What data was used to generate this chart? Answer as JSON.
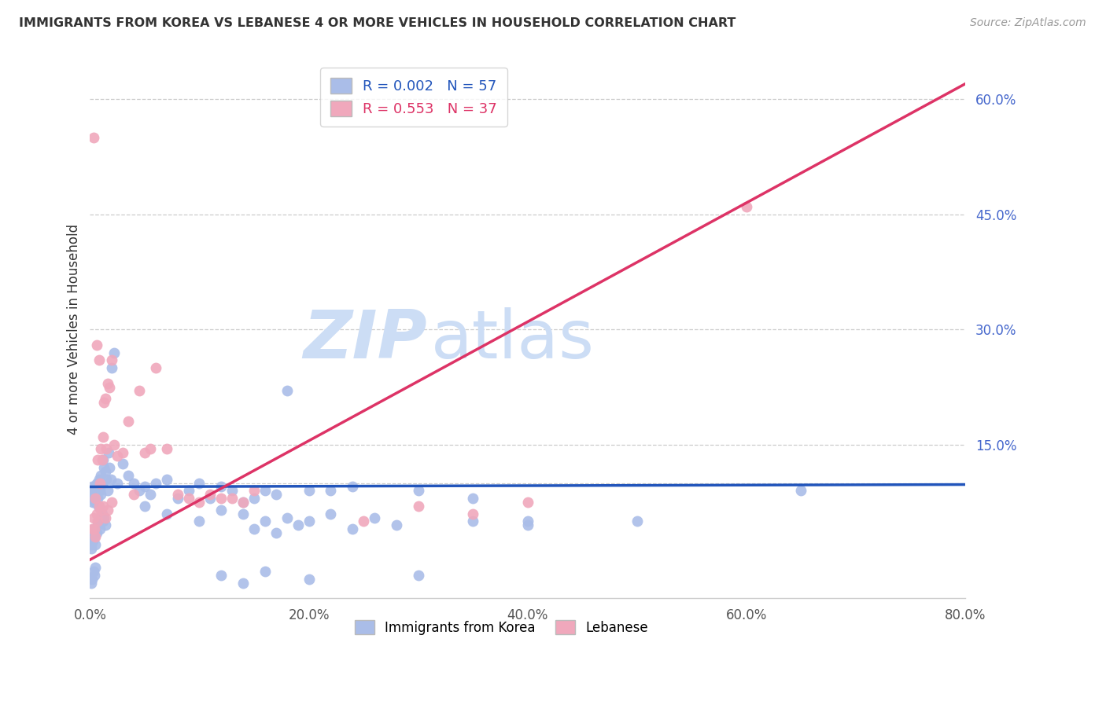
{
  "title": "IMMIGRANTS FROM KOREA VS LEBANESE 4 OR MORE VEHICLES IN HOUSEHOLD CORRELATION CHART",
  "source_text": "Source: ZipAtlas.com",
  "ylabel": "4 or more Vehicles in Household",
  "xlim": [
    0.0,
    80.0
  ],
  "ylim": [
    -5.0,
    65.0
  ],
  "yticks_right": [
    60.0,
    45.0,
    30.0,
    15.0
  ],
  "xticks": [
    0.0,
    20.0,
    40.0,
    60.0,
    80.0
  ],
  "korea_color": "#aabde8",
  "lebanese_color": "#f0a8bc",
  "korea_line_color": "#2255bb",
  "lebanese_line_color": "#dd3366",
  "korea_R": 0.002,
  "korea_N": 57,
  "lebanese_R": 0.553,
  "lebanese_N": 37,
  "watermark": "ZIPatlas",
  "watermark_color": "#ccddf5",
  "grid_color": "#cccccc",
  "axis_tick_color": "#4466cc",
  "title_color": "#333333",
  "korea_line_x": [
    0.0,
    80.0
  ],
  "korea_line_y": [
    9.5,
    9.8
  ],
  "lebanese_line_x": [
    0.0,
    80.0
  ],
  "lebanese_line_y": [
    0.0,
    62.0
  ],
  "korea_x": [
    0.1,
    0.15,
    0.2,
    0.25,
    0.3,
    0.35,
    0.4,
    0.45,
    0.5,
    0.55,
    0.6,
    0.65,
    0.7,
    0.75,
    0.8,
    0.85,
    0.9,
    0.95,
    1.0,
    1.1,
    1.2,
    1.3,
    1.4,
    1.5,
    1.6,
    1.7,
    1.8,
    1.9,
    2.0,
    2.2,
    2.5,
    3.0,
    3.5,
    4.0,
    4.5,
    5.0,
    5.5,
    6.0,
    7.0,
    8.0,
    9.0,
    10.0,
    11.0,
    12.0,
    13.0,
    14.0,
    15.0,
    16.0,
    17.0,
    18.0,
    20.0,
    22.0,
    24.0,
    30.0,
    35.0,
    40.0,
    65.0
  ],
  "korea_y": [
    9.0,
    8.5,
    9.5,
    7.5,
    8.0,
    9.0,
    8.0,
    7.5,
    9.5,
    8.5,
    10.0,
    9.0,
    8.0,
    7.0,
    9.5,
    10.5,
    9.0,
    8.5,
    11.0,
    10.0,
    13.0,
    12.0,
    11.5,
    10.5,
    9.0,
    14.0,
    12.0,
    10.5,
    25.0,
    27.0,
    10.0,
    12.5,
    11.0,
    10.0,
    9.0,
    9.5,
    8.5,
    10.0,
    10.5,
    8.0,
    9.0,
    10.0,
    8.0,
    9.5,
    9.0,
    7.5,
    8.0,
    9.0,
    8.5,
    22.0,
    9.0,
    9.0,
    9.5,
    9.0,
    8.0,
    5.0,
    9.0
  ],
  "korea_x_below": [
    0.1,
    0.15,
    0.2,
    0.25,
    0.3,
    0.35,
    0.4,
    0.5,
    0.6,
    0.7,
    0.8,
    0.9,
    1.0,
    1.1,
    1.2,
    1.3,
    1.4,
    5.0,
    7.0,
    10.0,
    12.0,
    14.0,
    15.0,
    16.0,
    17.0,
    18.0,
    19.0,
    20.0,
    22.0,
    24.0,
    26.0,
    28.0,
    35.0,
    40.0,
    50.0
  ],
  "korea_y_below": [
    2.0,
    1.5,
    3.0,
    2.5,
    3.5,
    4.0,
    3.0,
    2.0,
    3.5,
    4.5,
    5.0,
    4.0,
    5.5,
    6.0,
    5.0,
    5.5,
    4.5,
    7.0,
    6.0,
    5.0,
    6.5,
    6.0,
    4.0,
    5.0,
    3.5,
    5.5,
    4.5,
    5.0,
    6.0,
    4.0,
    5.5,
    4.5,
    5.0,
    4.5,
    5.0
  ],
  "korea_x_neg": [
    0.1,
    0.2,
    0.3,
    0.4,
    0.5,
    12.0,
    14.0,
    16.0,
    20.0,
    30.0
  ],
  "korea_y_neg": [
    -3.0,
    -2.5,
    -1.5,
    -2.0,
    -1.0,
    -2.0,
    -3.0,
    -1.5,
    -2.5,
    -2.0
  ],
  "lebanese_x": [
    0.3,
    0.5,
    0.6,
    0.7,
    0.8,
    0.9,
    1.0,
    1.1,
    1.2,
    1.3,
    1.4,
    1.5,
    1.6,
    1.8,
    2.0,
    2.2,
    2.5,
    3.0,
    3.5,
    4.0,
    4.5,
    5.0,
    5.5,
    6.0,
    7.0,
    8.0,
    9.0,
    10.0,
    11.0,
    12.0,
    13.0,
    14.0,
    15.0,
    60.0
  ],
  "lebanese_y": [
    55.0,
    8.0,
    28.0,
    13.0,
    26.0,
    10.0,
    14.5,
    13.0,
    16.0,
    20.5,
    21.0,
    14.5,
    23.0,
    22.5,
    26.0,
    15.0,
    13.5,
    14.0,
    18.0,
    8.5,
    22.0,
    14.0,
    14.5,
    25.0,
    14.5,
    8.5,
    8.0,
    7.5,
    8.5,
    8.0,
    8.0,
    7.5,
    9.0,
    46.0
  ],
  "lebanese_x_below": [
    0.2,
    0.3,
    0.4,
    0.5,
    0.6,
    0.7,
    0.8,
    1.0,
    1.2,
    1.4,
    1.6,
    2.0,
    25.0,
    30.0,
    35.0,
    40.0
  ],
  "lebanese_y_below": [
    4.0,
    5.5,
    4.0,
    3.0,
    6.0,
    5.0,
    7.0,
    6.5,
    7.0,
    5.5,
    6.5,
    7.5,
    5.0,
    7.0,
    6.0,
    7.5
  ]
}
